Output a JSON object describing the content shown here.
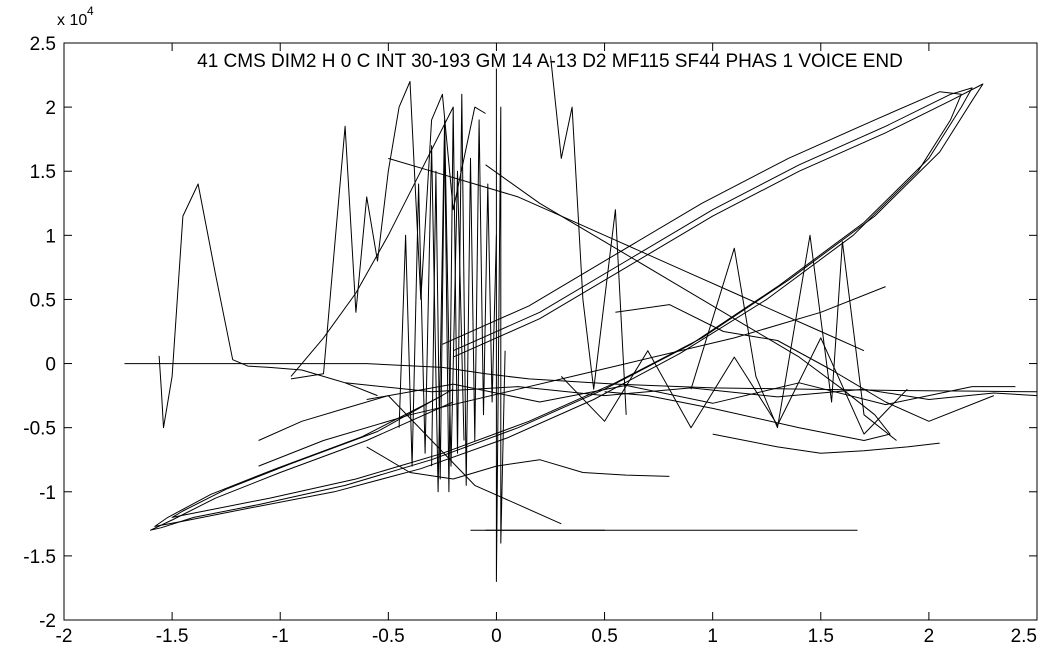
{
  "chart_data": {
    "type": "line",
    "title": "41 CMS DIM2 H 0 C INT 30-193 GM 14 A-13 D2 MF115 SF44 PHAS 1 VOICE END",
    "xlabel": "",
    "ylabel": "",
    "xlim": [
      -2,
      2.5
    ],
    "ylim": [
      -20000,
      25000
    ],
    "y_exponent_label": {
      "base": "x 10",
      "power": "4"
    },
    "x_ticks": [
      {
        "value": -2,
        "label": "-2"
      },
      {
        "value": -1.5,
        "label": "-1.5"
      },
      {
        "value": -1,
        "label": "-1"
      },
      {
        "value": -0.5,
        "label": "-0.5"
      },
      {
        "value": 0,
        "label": "0"
      },
      {
        "value": 0.5,
        "label": "0.5"
      },
      {
        "value": 1,
        "label": "1"
      },
      {
        "value": 1.5,
        "label": "1.5"
      },
      {
        "value": 2,
        "label": "2"
      },
      {
        "value": 2.5,
        "label": "2.5"
      }
    ],
    "y_ticks": [
      {
        "value": -20000,
        "label": "-2"
      },
      {
        "value": -15000,
        "label": "-1.5"
      },
      {
        "value": -10000,
        "label": "-1"
      },
      {
        "value": -5000,
        "label": "-0.5"
      },
      {
        "value": 0,
        "label": "0"
      },
      {
        "value": 5000,
        "label": "0.5"
      },
      {
        "value": 10000,
        "label": "1"
      },
      {
        "value": 15000,
        "label": "1.5"
      },
      {
        "value": 20000,
        "label": "2"
      },
      {
        "value": 25000,
        "label": "2.5"
      }
    ],
    "grid": false,
    "line_color": "#000000",
    "series": [
      {
        "x": [
          -1.72,
          -0.6,
          -0.25,
          -0.05,
          0.15,
          0.55,
          1.0,
          1.45,
          1.85,
          2.2,
          2.5
        ],
        "y": [
          0,
          0,
          -300,
          -800,
          -1200,
          -1600,
          -1900,
          -2000,
          -2100,
          -2150,
          -2200
        ]
      },
      {
        "x": [
          -1.56,
          -1.55,
          -1.54,
          -1.52,
          -1.5,
          -1.45,
          -1.38,
          -1.3,
          -1.22,
          -1.15,
          -1.05,
          -0.9,
          -0.7,
          -0.55
        ],
        "y": [
          600,
          -2000,
          -5000,
          -3000,
          -1000,
          11500,
          14000,
          7000,
          300,
          -200,
          -300,
          -500,
          -1500,
          -2500
        ]
      },
      {
        "x": [
          -0.95,
          -0.8,
          -0.7,
          -0.65,
          -0.6,
          -0.55,
          -0.5,
          -0.45,
          -0.4,
          -0.35,
          -0.3,
          -0.25,
          -0.2,
          -0.15,
          -0.1,
          -0.05
        ],
        "y": [
          -1200,
          -800,
          18500,
          4000,
          13000,
          8000,
          15000,
          20000,
          22000,
          5000,
          19000,
          21000,
          12000,
          16000,
          20000,
          19500
        ]
      },
      {
        "x": [
          -0.05,
          0.2,
          0.5,
          0.8,
          1.1,
          1.4,
          1.6,
          1.75,
          1.82,
          1.7,
          1.4,
          1.0,
          0.7,
          0.5
        ],
        "y": [
          15500,
          12500,
          9500,
          6500,
          3500,
          500,
          -2000,
          -4000,
          -5500,
          -6000,
          -5000,
          -3500,
          -2500,
          -2200
        ]
      },
      {
        "x": [
          -0.5,
          -0.3,
          -0.1,
          0.1,
          0.3,
          0.5,
          0.7,
          0.9,
          1.1,
          1.3,
          1.5,
          1.7
        ],
        "y": [
          16000,
          15000,
          14000,
          13000,
          11500,
          10000,
          8500,
          7000,
          5500,
          4000,
          2500,
          1000
        ]
      },
      {
        "x": [
          -1.1,
          -0.8,
          -0.4,
          0.1,
          0.6,
          1.1,
          1.5,
          1.8
        ],
        "y": [
          -8000,
          -6000,
          -4000,
          -2000,
          0,
          2000,
          4000,
          6000
        ]
      },
      {
        "x": [
          -0.95,
          -0.8,
          -0.65,
          -0.5,
          -0.35,
          -0.2
        ],
        "y": [
          -1000,
          2000,
          5500,
          10000,
          15000,
          20000
        ]
      },
      {
        "x": [
          -0.2,
          0.2,
          0.6,
          1.0,
          1.4,
          1.8,
          2.1,
          2.2,
          2.15,
          2.0,
          1.7,
          1.3,
          0.9,
          0.5,
          0.1,
          -0.3,
          -0.7,
          -1.1,
          -1.4,
          -1.55,
          -1.6,
          -1.5,
          -1.3,
          -1.0,
          -0.6,
          -0.2
        ],
        "y": [
          1000,
          4000,
          8000,
          12000,
          15500,
          18500,
          21000,
          21500,
          20000,
          16000,
          11000,
          6000,
          1500,
          -2000,
          -5000,
          -7500,
          -9500,
          -11000,
          -12000,
          -12800,
          -13000,
          -12200,
          -10500,
          -8500,
          -6000,
          -3000
        ]
      },
      {
        "x": [
          -0.25,
          0.15,
          0.55,
          0.95,
          1.35,
          1.75,
          2.05,
          2.15,
          2.1,
          1.95,
          1.65,
          1.25,
          0.85,
          0.45,
          0.05,
          -0.35,
          -0.75,
          -1.15,
          -1.45,
          -1.58,
          -1.52,
          -1.32,
          -1.02,
          -0.62,
          -0.25
        ],
        "y": [
          1500,
          4500,
          8500,
          12500,
          16000,
          19000,
          21200,
          21000,
          19000,
          15000,
          10000,
          5000,
          800,
          -2800,
          -5800,
          -8200,
          -10000,
          -11300,
          -12300,
          -12700,
          -12000,
          -10200,
          -8200,
          -5700,
          -2500
        ]
      },
      {
        "x": [
          -0.2,
          0.2,
          0.6,
          1.0,
          1.4,
          1.8,
          2.1,
          2.25,
          2.2,
          2.05,
          1.75,
          1.35,
          0.95,
          0.55,
          0.15,
          -0.25,
          -0.65,
          -1.05,
          -1.35,
          -1.5,
          -1.45,
          -1.25,
          -0.95,
          -0.55,
          -0.2
        ],
        "y": [
          500,
          3500,
          7500,
          11500,
          15000,
          18000,
          20500,
          21800,
          20500,
          16500,
          11500,
          6500,
          2000,
          -1500,
          -4500,
          -7000,
          -9000,
          -10500,
          -11500,
          -12000,
          -11500,
          -9800,
          -7800,
          -5300,
          -2000
        ]
      },
      {
        "x": [
          -0.3,
          -0.28,
          -0.26,
          -0.24,
          -0.22,
          -0.2,
          -0.18,
          -0.16,
          -0.14,
          -0.12,
          -0.1,
          -0.08,
          -0.06,
          -0.04,
          -0.02,
          0.0
        ],
        "y": [
          -8000,
          15000,
          -9000,
          18000,
          -10000,
          20000,
          -7000,
          21000,
          -9500,
          16000,
          -6000,
          19000,
          -4000,
          14000,
          -3000,
          10000
        ]
      },
      {
        "x": [
          -0.45,
          -0.42,
          -0.39,
          -0.36,
          -0.33,
          -0.3,
          -0.27,
          -0.24,
          -0.21,
          -0.18,
          -0.15
        ],
        "y": [
          -5000,
          10000,
          -8000,
          14000,
          -7000,
          17000,
          -10000,
          19000,
          -8000,
          15000,
          -6000
        ]
      },
      {
        "x": [
          0.0,
          0.0,
          0.02,
          0.02,
          0.04
        ],
        "y": [
          23000,
          -17000,
          20000,
          -14000,
          1000
        ]
      },
      {
        "x": [
          -0.12,
          0.0,
          0.12,
          0.35,
          0.5,
          0.35
        ],
        "y": [
          -13000,
          -13000,
          -13000,
          -13000,
          -13000,
          -13000
        ]
      },
      {
        "x": [
          -0.05,
          0.5,
          1.0,
          1.67
        ],
        "y": [
          -13000,
          -13000,
          -13000,
          -13000
        ]
      },
      {
        "x": [
          -0.7,
          -0.3,
          0.1,
          0.5,
          0.9,
          1.3,
          1.7,
          2.0,
          2.3,
          2.5
        ],
        "y": [
          -1500,
          -2200,
          -1800,
          -2500,
          -1900,
          -2600,
          -2000,
          -2800,
          -2300,
          -2500
        ]
      },
      {
        "x": [
          -0.6,
          -0.2,
          0.2,
          0.6,
          1.0,
          1.4,
          1.8,
          2.2,
          2.4
        ],
        "y": [
          -2800,
          -1600,
          -3000,
          -1700,
          -3100,
          -1500,
          -3200,
          -1800,
          -1800
        ]
      },
      {
        "x": [
          0.3,
          0.5,
          0.7,
          0.9,
          1.1,
          1.3,
          1.5,
          1.7,
          1.9
        ],
        "y": [
          -1000,
          -4500,
          1000,
          -5000,
          500,
          -4800,
          2000,
          -5500,
          -2000
        ]
      },
      {
        "x": [
          0.9,
          1.1,
          1.2,
          1.3,
          1.45,
          1.55,
          1.6,
          1.7,
          1.85
        ],
        "y": [
          -2000,
          9000,
          -1000,
          -5000,
          10000,
          -3000,
          9500,
          -4000,
          -6000
        ]
      },
      {
        "x": [
          0.25,
          0.3,
          0.35,
          0.4,
          0.45,
          0.55,
          0.6
        ],
        "y": [
          24000,
          16000,
          20000,
          5000,
          -2000,
          12000,
          -4000
        ]
      },
      {
        "x": [
          -1.1,
          -0.9,
          -0.7,
          -0.5,
          -0.3,
          -0.1,
          0.1,
          0.3
        ],
        "y": [
          -6000,
          -4500,
          -3500,
          -2500,
          -6000,
          -9500,
          -11000,
          -12500
        ]
      },
      {
        "x": [
          -0.6,
          -0.4,
          -0.2,
          0.0,
          0.2,
          0.4,
          0.6,
          0.8
        ],
        "y": [
          -6500,
          -8500,
          -9000,
          -8000,
          -7500,
          -8500,
          -8700,
          -8800
        ]
      },
      {
        "x": [
          1.0,
          1.3,
          1.5,
          1.7,
          1.9,
          2.05
        ],
        "y": [
          -5500,
          -6500,
          -7000,
          -6800,
          -6500,
          -6200
        ]
      },
      {
        "x": [
          0.55,
          0.8,
          1.05,
          1.3,
          1.55,
          1.8,
          2.0,
          2.3
        ],
        "y": [
          4000,
          4600,
          2500,
          1800,
          -500,
          -3000,
          -4500,
          -2500
        ]
      }
    ]
  }
}
